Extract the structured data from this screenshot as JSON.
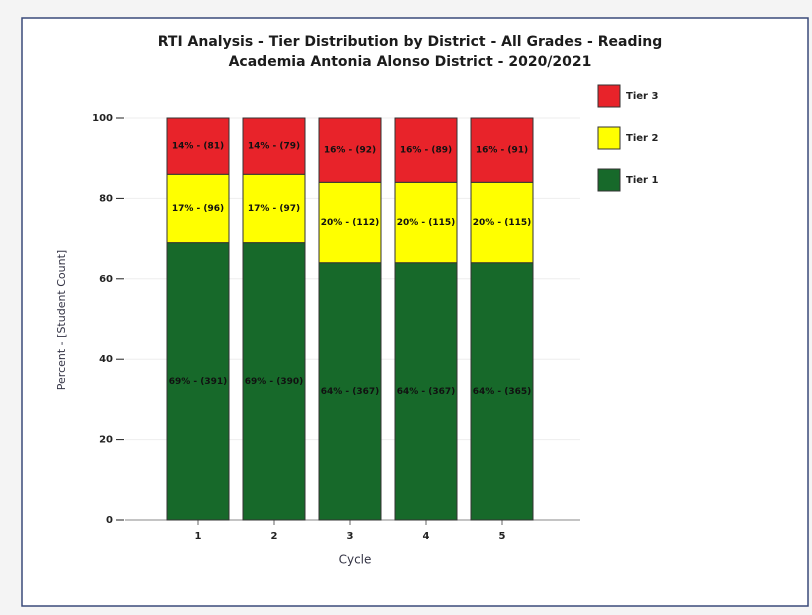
{
  "chart_data": {
    "type": "stacked_bar",
    "title": "RTI Analysis - Tier Distribution by District - All Grades - Reading",
    "subtitle": "Academia Antonia Alonso District - 2020/2021",
    "x_label": "Cycle",
    "y_label": "Percent - [Student Count]",
    "categories": [
      "1",
      "2",
      "3",
      "4",
      "5"
    ],
    "series": [
      {
        "name": "Tier 1",
        "color": "#17692a",
        "values": [
          69,
          69,
          64,
          64,
          64
        ],
        "value_labels": [
          "69% - (391)",
          "69% - (390)",
          "64% - (367)",
          "64% - (367)",
          "64% - (365)"
        ]
      },
      {
        "name": "Tier 2",
        "color": "#ffff00",
        "values": [
          17,
          17,
          20,
          20,
          20
        ],
        "value_labels": [
          "17% - (96)",
          "17% - (97)",
          "20% - (112)",
          "20% - (115)",
          "20% - (115)"
        ]
      },
      {
        "name": "Tier 3",
        "color": "#e8232a",
        "values": [
          14,
          14,
          16,
          16,
          16
        ],
        "value_labels": [
          "14% - (81)",
          "14% - (79)",
          "16% - (92)",
          "16% - (89)",
          "16% - (91)"
        ]
      }
    ],
    "ylim": [
      0,
      100
    ],
    "yticks": [
      0,
      20,
      40,
      60,
      80,
      100
    ],
    "grid": true,
    "legend": "right"
  }
}
